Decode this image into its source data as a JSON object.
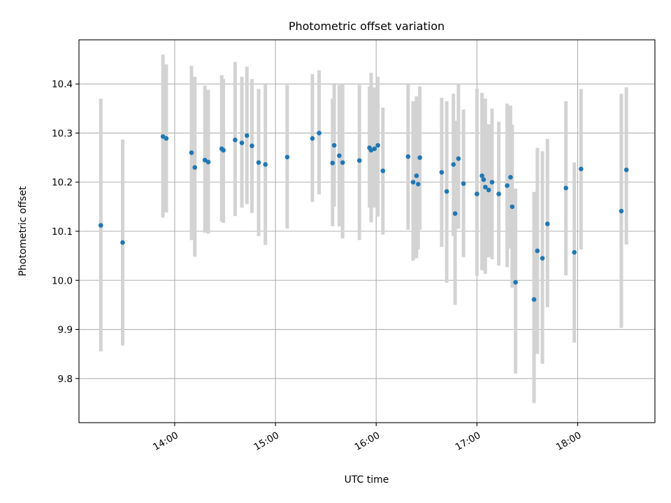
{
  "chart_data": {
    "type": "scatter",
    "title": "Photometric offset variation",
    "xlabel": "UTC time",
    "ylabel": "Photometric offset",
    "x_tick_labels": [
      "14:00",
      "15:00",
      "16:00",
      "17:00",
      "18:00"
    ],
    "x_ticks_hours": [
      14,
      15,
      16,
      17,
      18
    ],
    "y_tick_labels": [
      "9.8",
      "9.9",
      "10.0",
      "10.1",
      "10.2",
      "10.3",
      "10.4"
    ],
    "y_ticks": [
      9.8,
      9.9,
      10.0,
      10.1,
      10.2,
      10.3,
      10.4
    ],
    "xlim": [
      "13:03",
      "18:46"
    ],
    "ylim": [
      9.71,
      10.49
    ],
    "grid": true,
    "colors": {
      "points": "#1f77b4",
      "errorbars": "#d3d3d3",
      "grid": "#b0b0b0"
    },
    "series": [
      {
        "x": [
          "13:16",
          "13:29",
          "13:53",
          "13:55",
          "14:10",
          "14:12",
          "14:18",
          "14:20",
          "14:28",
          "14:29",
          "14:36",
          "14:40",
          "14:43",
          "14:46",
          "14:50",
          "14:54",
          "15:07",
          "15:22",
          "15:26",
          "15:34",
          "15:35",
          "15:38",
          "15:40",
          "15:50",
          "15:56",
          "15:57",
          "15:59",
          "16:01",
          "16:04",
          "16:19",
          "16:22",
          "16:24",
          "16:25",
          "16:26",
          "16:39",
          "16:42",
          "16:46",
          "16:47",
          "16:49",
          "16:52",
          "17:00",
          "17:03",
          "17:04",
          "17:05",
          "17:07",
          "17:09",
          "17:13",
          "17:18",
          "17:20",
          "17:21",
          "17:23",
          "17:34",
          "17:36",
          "17:39",
          "17:42",
          "17:53",
          "17:58",
          "18:02",
          "18:26",
          "18:29"
        ],
        "y": [
          10.112,
          10.077,
          10.293,
          10.289,
          10.26,
          10.23,
          10.245,
          10.241,
          10.268,
          10.265,
          10.286,
          10.28,
          10.295,
          10.274,
          10.24,
          10.236,
          10.251,
          10.289,
          10.3,
          10.239,
          10.275,
          10.254,
          10.24,
          10.244,
          10.27,
          10.265,
          10.268,
          10.275,
          10.223,
          10.252,
          10.2,
          10.213,
          10.196,
          10.25,
          10.22,
          10.181,
          10.236,
          10.136,
          10.248,
          10.197,
          10.176,
          10.213,
          10.205,
          10.19,
          10.184,
          10.2,
          10.176,
          10.193,
          10.21,
          10.15,
          9.996,
          9.961,
          10.06,
          10.045,
          10.115,
          10.188,
          10.057,
          10.227,
          10.141,
          10.225
        ],
        "yerr_low": [
          9.855,
          9.867,
          10.128,
          10.138,
          10.082,
          10.048,
          10.097,
          10.095,
          10.12,
          10.117,
          10.131,
          10.148,
          10.155,
          10.137,
          10.09,
          10.072,
          10.105,
          10.16,
          10.175,
          10.11,
          10.15,
          10.11,
          10.085,
          10.082,
          10.148,
          10.118,
          10.148,
          10.13,
          10.093,
          10.103,
          10.04,
          10.045,
          10.063,
          10.103,
          10.068,
          9.995,
          10.09,
          9.95,
          10.105,
          10.047,
          10.009,
          10.021,
          10.02,
          10.013,
          10.047,
          10.043,
          10.03,
          10.027,
          10.065,
          9.985,
          9.81,
          9.75,
          9.85,
          9.83,
          9.945,
          10.01,
          9.873,
          10.063,
          9.903,
          10.073
        ],
        "yerr_high": [
          10.37,
          10.287,
          10.46,
          10.44,
          10.437,
          10.415,
          10.397,
          10.388,
          10.418,
          10.41,
          10.445,
          10.415,
          10.435,
          10.41,
          10.39,
          10.4,
          10.398,
          10.42,
          10.428,
          10.37,
          10.4,
          10.398,
          10.4,
          10.398,
          10.395,
          10.423,
          10.393,
          10.415,
          10.352,
          10.4,
          10.365,
          10.375,
          10.335,
          10.395,
          10.372,
          10.365,
          10.38,
          10.325,
          10.4,
          10.348,
          10.39,
          10.382,
          10.342,
          10.37,
          10.318,
          10.35,
          10.323,
          10.36,
          10.356,
          10.317,
          10.187,
          10.18,
          10.27,
          10.263,
          10.288,
          10.365,
          10.24,
          10.39,
          10.38,
          10.393
        ]
      }
    ]
  }
}
